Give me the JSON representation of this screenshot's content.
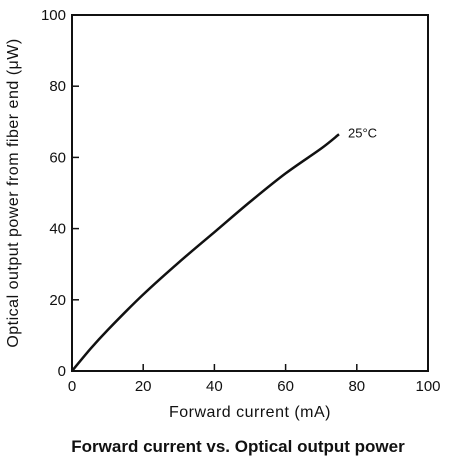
{
  "chart_data": {
    "type": "line",
    "title": "Forward current vs. Optical output power",
    "xlabel": "Forward current (mA)",
    "ylabel": "Optical output power from fiber end (μW)",
    "xlim": [
      0,
      100
    ],
    "ylim": [
      0,
      100
    ],
    "xticks": [
      "0",
      "20",
      "40",
      "60",
      "80",
      "100"
    ],
    "yticks": [
      "0",
      "20",
      "40",
      "60",
      "80",
      "100"
    ],
    "grid": false,
    "series": [
      {
        "name": "25°C",
        "x": [
          0,
          5,
          10,
          20,
          30,
          40,
          50,
          60,
          70,
          75
        ],
        "y": [
          0,
          6,
          11.5,
          21.5,
          30.5,
          39,
          47.5,
          55.5,
          62.5,
          66.5
        ]
      }
    ]
  }
}
